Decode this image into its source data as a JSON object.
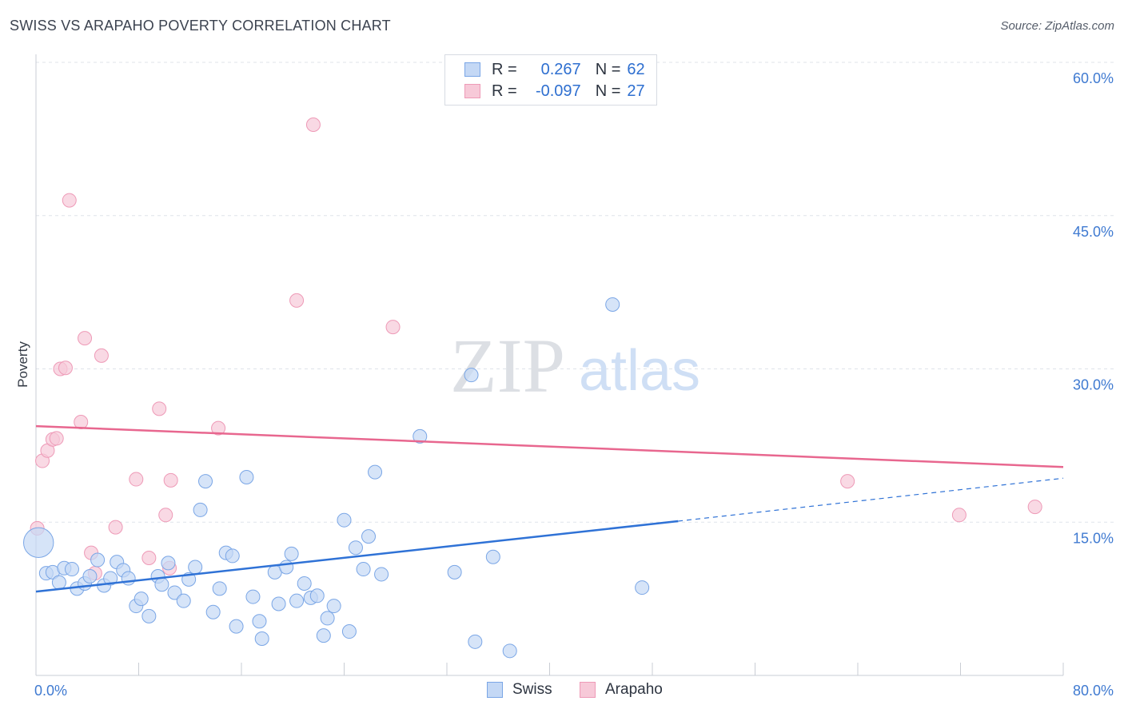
{
  "header": {
    "title": "SWISS VS ARAPAHO POVERTY CORRELATION CHART",
    "source": "Source: ZipAtlas.com"
  },
  "watermark": {
    "zip": "ZIP",
    "atlas": "atlas"
  },
  "legend": {
    "r_label": "R =",
    "n_label": "N =",
    "rows": [
      {
        "name": "Swiss",
        "r": "0.267",
        "n": "62",
        "color": "#8ab4ef"
      },
      {
        "name": "Arapaho",
        "r": "-0.097",
        "n": "27",
        "color": "#f2a3bf"
      }
    ]
  },
  "colors": {
    "swiss_fill": "#c4d8f5",
    "swiss_stroke": "#7aa6e6",
    "swiss_line": "#2f72d6",
    "arapaho_fill": "#f7c9d8",
    "arapaho_stroke": "#ee9ab7",
    "arapaho_line": "#e8678f",
    "grid": "#dfe3ea",
    "tick_text": "#3f7ad1"
  },
  "chart_data": {
    "type": "scatter",
    "title": "SWISS VS ARAPAHO POVERTY CORRELATION CHART",
    "xlabel": "",
    "ylabel": "Poverty",
    "xlim": [
      0,
      80
    ],
    "ylim": [
      0,
      60
    ],
    "x_tick_labels": [
      "0.0%",
      "80.0%"
    ],
    "y_ticks": [
      15,
      30,
      45,
      60
    ],
    "y_tick_labels": [
      "15.0%",
      "30.0%",
      "45.0%",
      "60.0%"
    ],
    "grid": true,
    "legend_position": "top-center",
    "series": [
      {
        "name": "Swiss",
        "r": 0.267,
        "n": 62,
        "trend": {
          "x_solid": [
            0,
            50
          ],
          "y_solid": [
            8.2,
            15.1
          ],
          "x_dashed": [
            50,
            80
          ],
          "y_dashed": [
            15.1,
            19.3
          ]
        },
        "points": [
          [
            0.2,
            13.0,
            2.2
          ],
          [
            0.8,
            10.0,
            1
          ],
          [
            1.3,
            10.1,
            1
          ],
          [
            1.8,
            9.1,
            1
          ],
          [
            2.2,
            10.5,
            1
          ],
          [
            2.8,
            10.4,
            1
          ],
          [
            3.2,
            8.5,
            1
          ],
          [
            3.8,
            9.0,
            1
          ],
          [
            4.2,
            9.7,
            1
          ],
          [
            4.8,
            11.3,
            1
          ],
          [
            5.3,
            8.8,
            1
          ],
          [
            5.8,
            9.5,
            1
          ],
          [
            6.3,
            11.1,
            1
          ],
          [
            6.8,
            10.3,
            1
          ],
          [
            7.2,
            9.5,
            1
          ],
          [
            7.8,
            6.8,
            1
          ],
          [
            8.2,
            7.5,
            1
          ],
          [
            8.8,
            5.8,
            1
          ],
          [
            9.5,
            9.7,
            1
          ],
          [
            9.8,
            8.9,
            1
          ],
          [
            10.3,
            11.0,
            1
          ],
          [
            10.8,
            8.1,
            1
          ],
          [
            11.5,
            7.3,
            1
          ],
          [
            11.9,
            9.4,
            1
          ],
          [
            12.4,
            10.6,
            1
          ],
          [
            12.8,
            16.2,
            1
          ],
          [
            13.2,
            19.0,
            1
          ],
          [
            13.8,
            6.2,
            1
          ],
          [
            14.3,
            8.5,
            1
          ],
          [
            14.8,
            12.0,
            1
          ],
          [
            15.3,
            11.7,
            1
          ],
          [
            15.6,
            4.8,
            1
          ],
          [
            16.4,
            19.4,
            1
          ],
          [
            16.9,
            7.7,
            1
          ],
          [
            17.4,
            5.3,
            1
          ],
          [
            17.6,
            3.6,
            1
          ],
          [
            18.6,
            10.1,
            1
          ],
          [
            18.9,
            7.0,
            1
          ],
          [
            19.5,
            10.6,
            1
          ],
          [
            19.9,
            11.9,
            1
          ],
          [
            20.3,
            7.3,
            1
          ],
          [
            20.9,
            9.0,
            1
          ],
          [
            21.4,
            7.6,
            1
          ],
          [
            21.9,
            7.8,
            1
          ],
          [
            22.4,
            3.9,
            1
          ],
          [
            22.7,
            5.6,
            1
          ],
          [
            23.2,
            6.8,
            1
          ],
          [
            24.0,
            15.2,
            1
          ],
          [
            24.4,
            4.3,
            1
          ],
          [
            24.9,
            12.5,
            1
          ],
          [
            25.5,
            10.4,
            1
          ],
          [
            25.9,
            13.6,
            1
          ],
          [
            26.4,
            19.9,
            1
          ],
          [
            26.9,
            9.9,
            1
          ],
          [
            29.9,
            23.4,
            1
          ],
          [
            32.6,
            10.1,
            1
          ],
          [
            33.9,
            29.4,
            1
          ],
          [
            34.2,
            3.3,
            1
          ],
          [
            35.6,
            11.6,
            1
          ],
          [
            36.9,
            2.4,
            1
          ],
          [
            44.9,
            36.3,
            1
          ],
          [
            47.2,
            8.6,
            1
          ]
        ]
      },
      {
        "name": "Arapaho",
        "r": -0.097,
        "n": 27,
        "trend": {
          "x_solid": [
            0,
            80
          ],
          "y_solid": [
            24.4,
            20.4
          ]
        },
        "points": [
          [
            0.1,
            14.4,
            1
          ],
          [
            0.5,
            21.0,
            1
          ],
          [
            0.9,
            22.0,
            1
          ],
          [
            1.3,
            23.1,
            1
          ],
          [
            1.6,
            23.2,
            1
          ],
          [
            1.9,
            30.0,
            1
          ],
          [
            2.3,
            30.1,
            1
          ],
          [
            2.6,
            46.5,
            1
          ],
          [
            3.5,
            24.8,
            1
          ],
          [
            3.8,
            33.0,
            1
          ],
          [
            4.3,
            12.0,
            1
          ],
          [
            4.6,
            10.0,
            1
          ],
          [
            5.1,
            31.3,
            1
          ],
          [
            6.2,
            14.5,
            1
          ],
          [
            7.8,
            19.2,
            1
          ],
          [
            8.8,
            11.5,
            1
          ],
          [
            9.6,
            26.1,
            1
          ],
          [
            10.1,
            15.7,
            1
          ],
          [
            10.4,
            10.5,
            1
          ],
          [
            10.5,
            19.1,
            1
          ],
          [
            14.2,
            24.2,
            1
          ],
          [
            20.3,
            36.7,
            1
          ],
          [
            21.6,
            53.9,
            1
          ],
          [
            27.8,
            34.1,
            1
          ],
          [
            63.2,
            19.0,
            1
          ],
          [
            71.9,
            15.7,
            1
          ],
          [
            77.8,
            16.5,
            1
          ]
        ]
      }
    ]
  }
}
